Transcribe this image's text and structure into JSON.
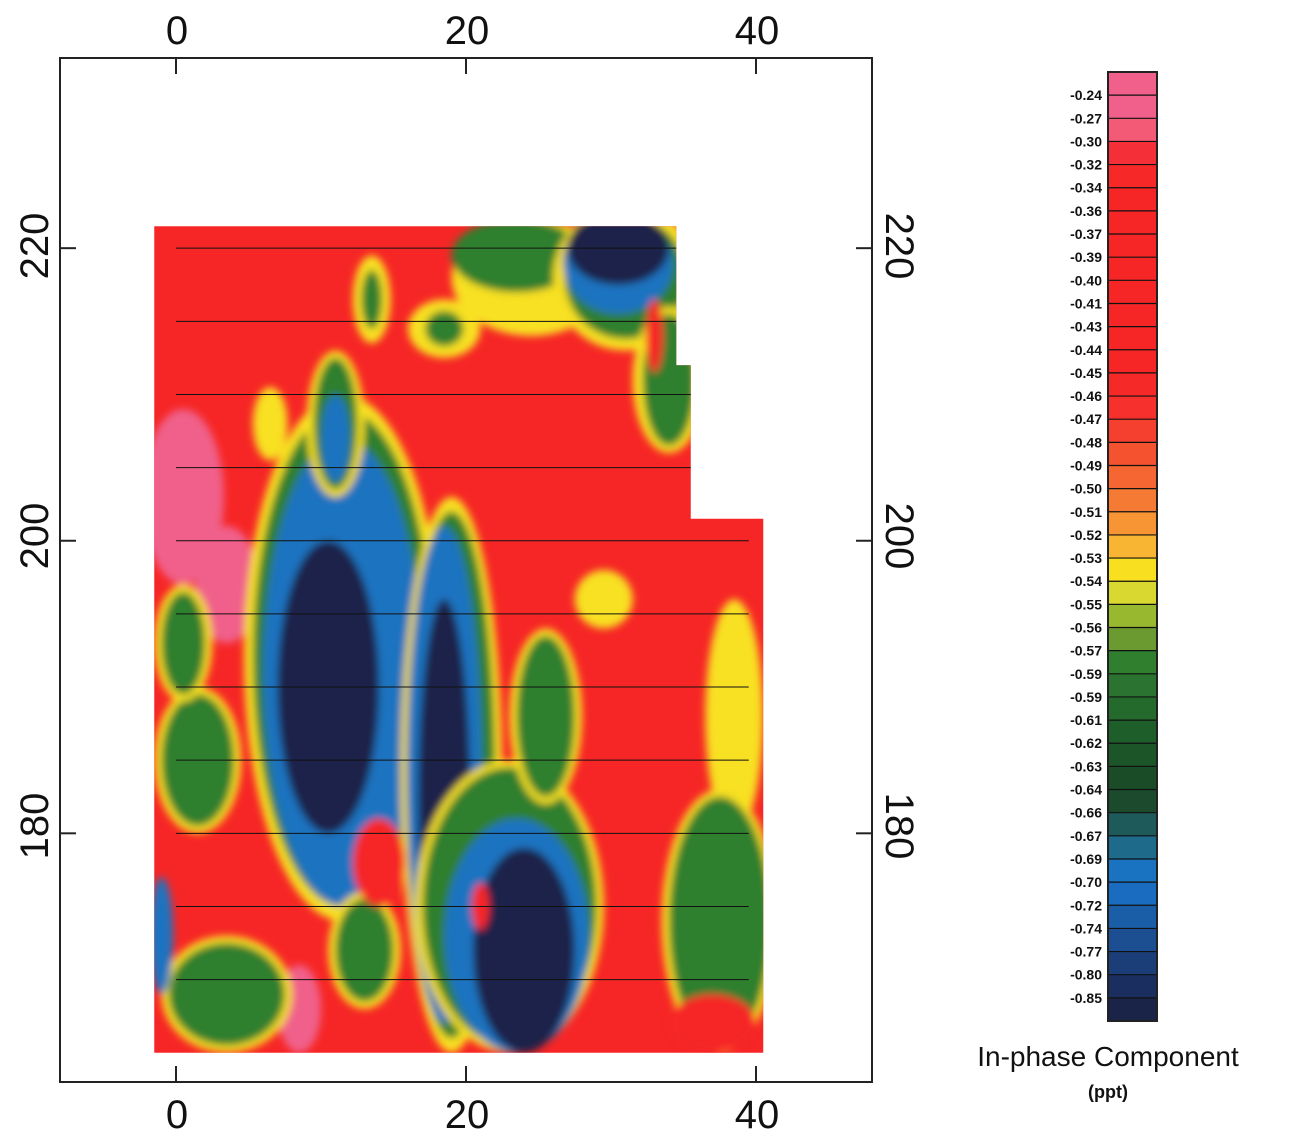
{
  "chart_data": {
    "type": "heatmap",
    "title": "",
    "xlabel": "",
    "ylabel": "",
    "xlim": [
      -8,
      48
    ],
    "ylim": [
      163,
      233
    ],
    "x_ticks": [
      0,
      20,
      40
    ],
    "y_ticks": [
      180,
      200,
      220
    ],
    "data_extent": {
      "x": [
        -1.5,
        40.5
      ],
      "y": [
        165,
        221.5
      ],
      "notch_top_right": [
        [
          34.5,
          221.5
        ],
        [
          34.5,
          212
        ],
        [
          35.5,
          212
        ],
        [
          35.5,
          201.5
        ],
        [
          40.5,
          201.5
        ]
      ]
    },
    "survey_lines_y": [
      220,
      215,
      210,
      205,
      200,
      195,
      190,
      185,
      180,
      175,
      170
    ],
    "colorbar": {
      "title": "In-phase Component",
      "unit": "(ppt)",
      "levels": [
        "-0.24",
        "-0.27",
        "-0.30",
        "-0.32",
        "-0.34",
        "-0.36",
        "-0.37",
        "-0.39",
        "-0.40",
        "-0.41",
        "-0.43",
        "-0.44",
        "-0.45",
        "-0.46",
        "-0.47",
        "-0.48",
        "-0.49",
        "-0.50",
        "-0.51",
        "-0.52",
        "-0.53",
        "-0.54",
        "-0.55",
        "-0.56",
        "-0.57",
        "-0.59",
        "-0.59",
        "-0.61",
        "-0.62",
        "-0.63",
        "-0.64",
        "-0.66",
        "-0.67",
        "-0.69",
        "-0.70",
        "-0.72",
        "-0.74",
        "-0.77",
        "-0.80",
        "-0.85"
      ],
      "colors": [
        "#f0608a",
        "#f35a75",
        "#f52f38",
        "#f62828",
        "#f62626",
        "#f62626",
        "#f62626",
        "#f62626",
        "#f62626",
        "#f62626",
        "#f62626",
        "#f62626",
        "#f62929",
        "#f6302c",
        "#f6402f",
        "#f55330",
        "#f56632",
        "#f57a34",
        "#f79433",
        "#f8b534",
        "#f8e020",
        "#d8d830",
        "#98b830",
        "#6a9a30",
        "#2f7f2f",
        "#2a7330",
        "#236a2c",
        "#1e5e2a",
        "#1b5528",
        "#1a4d27",
        "#1b4a2d",
        "#1f5a5a",
        "#1d6a8a",
        "#1a73c0",
        "#1a6cc0",
        "#1b5ea8",
        "#1c4f92",
        "#1c3e78",
        "#1a2f60",
        "#1a2448"
      ]
    },
    "field_colors": {
      "high": "#f62626",
      "high_pink": "#f0608a",
      "mid_yellow": "#f8e020",
      "mid_green": "#2f7f2f",
      "low_blue": "#1a73c0",
      "low_navy": "#1a2448"
    },
    "blobs": [
      {
        "level": "pink",
        "x": 0.5,
        "y": 203,
        "rx": 2.8,
        "ry": 6
      },
      {
        "level": "pink",
        "x": 3.5,
        "y": 197,
        "rx": 2.2,
        "ry": 4
      },
      {
        "level": "pink",
        "x": 8.5,
        "y": 168,
        "rx": 1.5,
        "ry": 3
      },
      {
        "level": "yellow",
        "x": 13.5,
        "y": 216.5,
        "rx": 1.3,
        "ry": 3
      },
      {
        "level": "green",
        "x": 13.5,
        "y": 216.5,
        "rx": 0.7,
        "ry": 2
      },
      {
        "level": "yellow",
        "x": 18.5,
        "y": 214.5,
        "rx": 2.5,
        "ry": 2
      },
      {
        "level": "green",
        "x": 18.5,
        "y": 214.5,
        "rx": 1.3,
        "ry": 1.2
      },
      {
        "level": "yellow",
        "x": 6.5,
        "y": 208,
        "rx": 1.2,
        "ry": 2.5
      },
      {
        "level": "yellow",
        "x": 29.5,
        "y": 196,
        "rx": 2,
        "ry": 2
      },
      {
        "level": "yellow",
        "x": 38.5,
        "y": 188,
        "rx": 2,
        "ry": 8
      },
      {
        "level": "yellow",
        "x": 24.5,
        "y": 218,
        "rx": 5.5,
        "ry": 4
      },
      {
        "level": "green",
        "x": 23.5,
        "y": 219.5,
        "rx": 4.5,
        "ry": 2.5
      },
      {
        "level": "yellow",
        "x": 31,
        "y": 218,
        "rx": 5,
        "ry": 5
      },
      {
        "level": "green",
        "x": 31,
        "y": 218,
        "rx": 4.2,
        "ry": 4.2
      },
      {
        "level": "blue",
        "x": 30.5,
        "y": 219,
        "rx": 3.8,
        "ry": 3.5
      },
      {
        "level": "navy",
        "x": 30.5,
        "y": 220,
        "rx": 3.5,
        "ry": 2.5
      },
      {
        "level": "yellow",
        "x": 34,
        "y": 211,
        "rx": 2.5,
        "ry": 5
      },
      {
        "level": "green",
        "x": 34,
        "y": 211,
        "rx": 1.8,
        "ry": 4.5
      },
      {
        "level": "red",
        "x": 33,
        "y": 214,
        "rx": 0.6,
        "ry": 2.5
      },
      {
        "level": "yellow",
        "x": 11.5,
        "y": 192,
        "rx": 6.8,
        "ry": 18
      },
      {
        "level": "green",
        "x": 11.5,
        "y": 192,
        "rx": 6.2,
        "ry": 17
      },
      {
        "level": "blue",
        "x": 11.5,
        "y": 191,
        "rx": 5.5,
        "ry": 16
      },
      {
        "level": "navy",
        "x": 10.5,
        "y": 190,
        "rx": 3.5,
        "ry": 10
      },
      {
        "level": "yellow",
        "x": 11,
        "y": 208,
        "rx": 2,
        "ry": 5
      },
      {
        "level": "green",
        "x": 11,
        "y": 208,
        "rx": 1.5,
        "ry": 4.5
      },
      {
        "level": "blue",
        "x": 11,
        "y": 207,
        "rx": 1,
        "ry": 3
      },
      {
        "level": "yellow",
        "x": 19,
        "y": 184,
        "rx": 3.5,
        "ry": 19
      },
      {
        "level": "green",
        "x": 19,
        "y": 184,
        "rx": 3,
        "ry": 18
      },
      {
        "level": "blue",
        "x": 18.5,
        "y": 184,
        "rx": 2.6,
        "ry": 17
      },
      {
        "level": "navy",
        "x": 18.5,
        "y": 182,
        "rx": 1.8,
        "ry": 14
      },
      {
        "level": "yellow",
        "x": 23,
        "y": 175,
        "rx": 6.5,
        "ry": 10
      },
      {
        "level": "green",
        "x": 23,
        "y": 175,
        "rx": 6,
        "ry": 9.5
      },
      {
        "level": "blue",
        "x": 23.5,
        "y": 173,
        "rx": 5,
        "ry": 8
      },
      {
        "level": "navy",
        "x": 24,
        "y": 172,
        "rx": 3.5,
        "ry": 7
      },
      {
        "level": "yellow",
        "x": 25.5,
        "y": 188,
        "rx": 2.5,
        "ry": 6
      },
      {
        "level": "green",
        "x": 25.5,
        "y": 188,
        "rx": 2,
        "ry": 5.5
      },
      {
        "level": "yellow",
        "x": 37.5,
        "y": 174,
        "rx": 4,
        "ry": 9
      },
      {
        "level": "green",
        "x": 37.5,
        "y": 174,
        "rx": 3.5,
        "ry": 8.5
      },
      {
        "level": "red",
        "x": 37,
        "y": 167,
        "rx": 3,
        "ry": 2
      },
      {
        "level": "yellow",
        "x": 1.5,
        "y": 185,
        "rx": 3,
        "ry": 5
      },
      {
        "level": "green",
        "x": 1.5,
        "y": 185,
        "rx": 2.5,
        "ry": 4.5
      },
      {
        "level": "yellow",
        "x": 0.5,
        "y": 193,
        "rx": 2,
        "ry": 4
      },
      {
        "level": "green",
        "x": 0.5,
        "y": 193,
        "rx": 1.5,
        "ry": 3.5
      },
      {
        "level": "yellow",
        "x": 3.5,
        "y": 169,
        "rx": 4.5,
        "ry": 4
      },
      {
        "level": "green",
        "x": 3.5,
        "y": 169,
        "rx": 4,
        "ry": 3.5
      },
      {
        "level": "blue",
        "x": -1,
        "y": 173,
        "rx": 0.8,
        "ry": 4
      },
      {
        "level": "yellow",
        "x": 13,
        "y": 172,
        "rx": 2.5,
        "ry": 4
      },
      {
        "level": "green",
        "x": 13,
        "y": 172,
        "rx": 2,
        "ry": 3.5
      },
      {
        "level": "red",
        "x": 21,
        "y": 175,
        "rx": 0.6,
        "ry": 1.6
      },
      {
        "level": "red",
        "x": 14,
        "y": 178,
        "rx": 1.8,
        "ry": 3
      }
    ]
  }
}
